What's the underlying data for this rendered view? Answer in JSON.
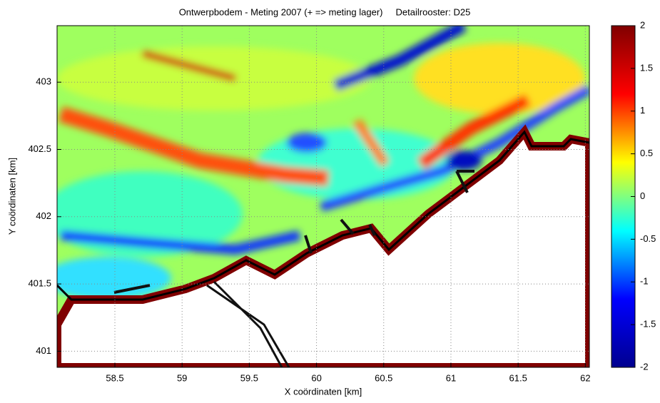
{
  "chart_data": {
    "type": "heatmap",
    "title": "Ontwerpbodem - Meting 2007 (+ => meting lager)     Detailrooster: D25",
    "x_label": "X coördinaten [km]",
    "y_label": "Y coördinaten [km]",
    "xlim": [
      58.07,
      62.03
    ],
    "xticks": [
      58.5,
      59,
      59.5,
      60,
      60.5,
      61,
      61.5,
      62
    ],
    "ylim": [
      400.88,
      403.42
    ],
    "yticks": [
      401,
      401.5,
      402,
      402.5,
      403
    ],
    "grid": true,
    "colorbar": {
      "clim": [
        -2,
        2
      ],
      "ticks": [
        -2,
        -1.5,
        -1,
        -0.5,
        0,
        0.5,
        1,
        1.5,
        2
      ],
      "colormap": [
        "#00008f",
        "#0000ff",
        "#00ffff",
        "#ffff00",
        "#ff0000",
        "#800000"
      ]
    }
  }
}
